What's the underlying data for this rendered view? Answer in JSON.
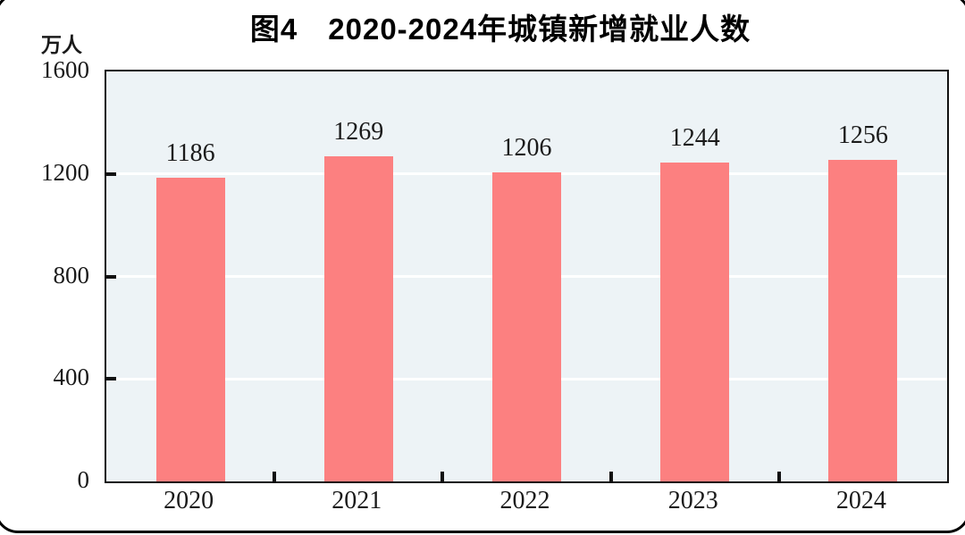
{
  "chart_data": {
    "type": "bar",
    "title": "图4　2020-2024年城镇新增就业人数",
    "unit_label": "万人",
    "categories": [
      "2020",
      "2021",
      "2022",
      "2023",
      "2024"
    ],
    "values": [
      1186,
      1269,
      1206,
      1244,
      1256
    ],
    "value_labels": [
      "1186",
      "1269",
      "1206",
      "1244",
      "1256"
    ],
    "xlabel": "",
    "ylabel": "万人",
    "ylim": [
      0,
      1600
    ],
    "yticks": [
      0,
      400,
      800,
      1200,
      1600
    ],
    "gridlines": [
      400,
      800,
      1200
    ],
    "grid": "horizontal-only",
    "legend": "none",
    "colors": {
      "bar": "#fc8080",
      "plot_background": "#edf3f6",
      "gridline": "#ffffff",
      "axis": "#111111",
      "text": "#1a1a1a",
      "frame_border": "#000000"
    }
  }
}
